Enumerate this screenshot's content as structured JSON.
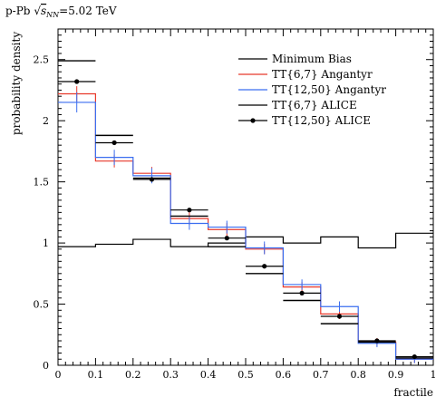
{
  "chart_data": {
    "type": "line",
    "title": "p-Pb √s_NN=5.02 TeV",
    "title_parts": {
      "prefix": "p-Pb ",
      "sqrt": "√",
      "s": "s",
      "sub": "NN",
      "suffix": "=5.02 TeV"
    },
    "xlabel": "fractile",
    "ylabel": "probability density",
    "xlim": [
      0,
      1
    ],
    "ylim": [
      0,
      2.75
    ],
    "x_ticks": [
      0,
      0.1,
      0.2,
      0.3,
      0.4,
      0.5,
      0.6,
      0.7,
      0.8,
      0.9,
      1
    ],
    "x_tick_labels": [
      "0",
      "0.1",
      "0.2",
      "0.3",
      "0.4",
      "0.5",
      "0.6",
      "0.7",
      "0.8",
      "0.9",
      "1"
    ],
    "y_ticks": [
      0,
      0.5,
      1,
      1.5,
      2,
      2.5
    ],
    "y_tick_labels": [
      "0",
      "0.5",
      "1",
      "1.5",
      "2",
      "2.5"
    ],
    "grid": false,
    "legend_position": "top-right",
    "bin_edges": [
      0,
      0.1,
      0.2,
      0.3,
      0.4,
      0.5,
      0.6,
      0.7,
      0.8,
      0.9,
      1
    ],
    "series": [
      {
        "name": "Minimum Bias",
        "style": "step",
        "color": "#000000",
        "values": [
          0.97,
          0.99,
          1.03,
          0.97,
          1.0,
          1.05,
          1.0,
          1.05,
          0.96,
          1.08
        ]
      },
      {
        "name": "TT{6,7} Angantyr",
        "style": "step",
        "color": "#e8392b",
        "values": [
          2.22,
          1.67,
          1.57,
          1.2,
          1.11,
          0.95,
          0.64,
          0.42,
          0.19,
          0.05
        ],
        "errors": [
          0.04,
          0.03,
          0.03,
          0.03,
          0.03,
          0.02,
          0.02,
          0.02,
          0.01,
          0.01
        ]
      },
      {
        "name": "TT{12,50} Angantyr",
        "style": "step",
        "color": "#3b6ef0",
        "values": [
          2.15,
          1.7,
          1.55,
          1.16,
          1.13,
          0.96,
          0.66,
          0.48,
          0.18,
          0.05
        ],
        "errors": [
          0.06,
          0.04,
          0.04,
          0.03,
          0.03,
          0.03,
          0.02,
          0.02,
          0.01,
          0.01
        ]
      },
      {
        "name": "TT{6,7} ALICE",
        "style": "hbar",
        "color": "#000000",
        "values": [
          2.49,
          1.88,
          1.53,
          1.22,
          0.97,
          0.75,
          0.53,
          0.34,
          0.19,
          0.06
        ]
      },
      {
        "name": "TT{12,50} ALICE",
        "style": "marker",
        "color": "#000000",
        "values": [
          2.32,
          1.82,
          1.52,
          1.27,
          1.04,
          0.81,
          0.59,
          0.4,
          0.2,
          0.07
        ]
      }
    ]
  }
}
